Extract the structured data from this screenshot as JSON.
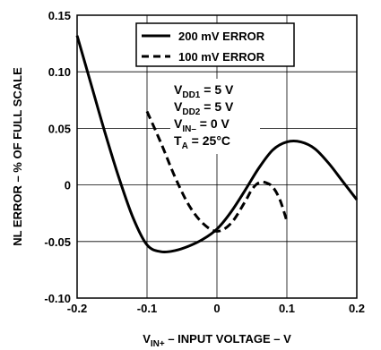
{
  "chart_data": {
    "type": "line",
    "title": "",
    "xlabel": "V_IN+ – INPUT VOLTAGE – V",
    "xlabel_parts": {
      "main": "V",
      "sub": "IN+",
      "rest": " – INPUT VOLTAGE – V"
    },
    "ylabel": "NL ERROR – % OF FULL SCALE",
    "xlim": [
      -0.2,
      0.2
    ],
    "ylim": [
      -0.1,
      0.15
    ],
    "xticks": [
      -0.2,
      -0.1,
      0,
      0.1,
      0.2
    ],
    "xtick_labels": [
      "-0.2",
      "-0.1",
      "0",
      "0.1",
      "0.2"
    ],
    "yticks": [
      0.15,
      0.1,
      0.05,
      0,
      -0.05,
      -0.1
    ],
    "ytick_labels": [
      "0.15",
      "0.10",
      "0.05",
      "0",
      "-0.05",
      "-0.10"
    ],
    "grid": true,
    "legend_position": "top-right",
    "series": [
      {
        "name": "200 mV ERROR",
        "style": "solid",
        "x": [
          -0.2,
          -0.18,
          -0.16,
          -0.14,
          -0.12,
          -0.1,
          -0.08,
          -0.06,
          -0.04,
          -0.02,
          0,
          0.02,
          0.04,
          0.06,
          0.08,
          0.1,
          0.12,
          0.14,
          0.16,
          0.18,
          0.2
        ],
        "y": [
          0.132,
          0.089,
          0.046,
          0.006,
          -0.029,
          -0.053,
          -0.059,
          -0.058,
          -0.054,
          -0.048,
          -0.039,
          -0.024,
          -0.005,
          0.015,
          0.031,
          0.038,
          0.038,
          0.032,
          0.019,
          0.003,
          -0.013
        ]
      },
      {
        "name": "100 mV ERROR",
        "style": "dashed",
        "x": [
          -0.1,
          -0.08,
          -0.06,
          -0.04,
          -0.02,
          0,
          0.02,
          0.04,
          0.05,
          0.06,
          0.07,
          0.08,
          0.09,
          0.1
        ],
        "y": [
          0.065,
          0.037,
          0.007,
          -0.018,
          -0.034,
          -0.041,
          -0.034,
          -0.015,
          -0.004,
          0.002,
          0.002,
          -0.002,
          -0.013,
          -0.032
        ]
      }
    ],
    "annotations": [
      {
        "main": "V",
        "sub": "DD1",
        "rest": " = 5 V"
      },
      {
        "main": "V",
        "sub": "DD2",
        "rest": " = 5 V"
      },
      {
        "main": "V",
        "sub": "IN–",
        "rest": " = 0 V"
      },
      {
        "main": "T",
        "sub": "A",
        "rest": " = 25°C"
      }
    ]
  }
}
